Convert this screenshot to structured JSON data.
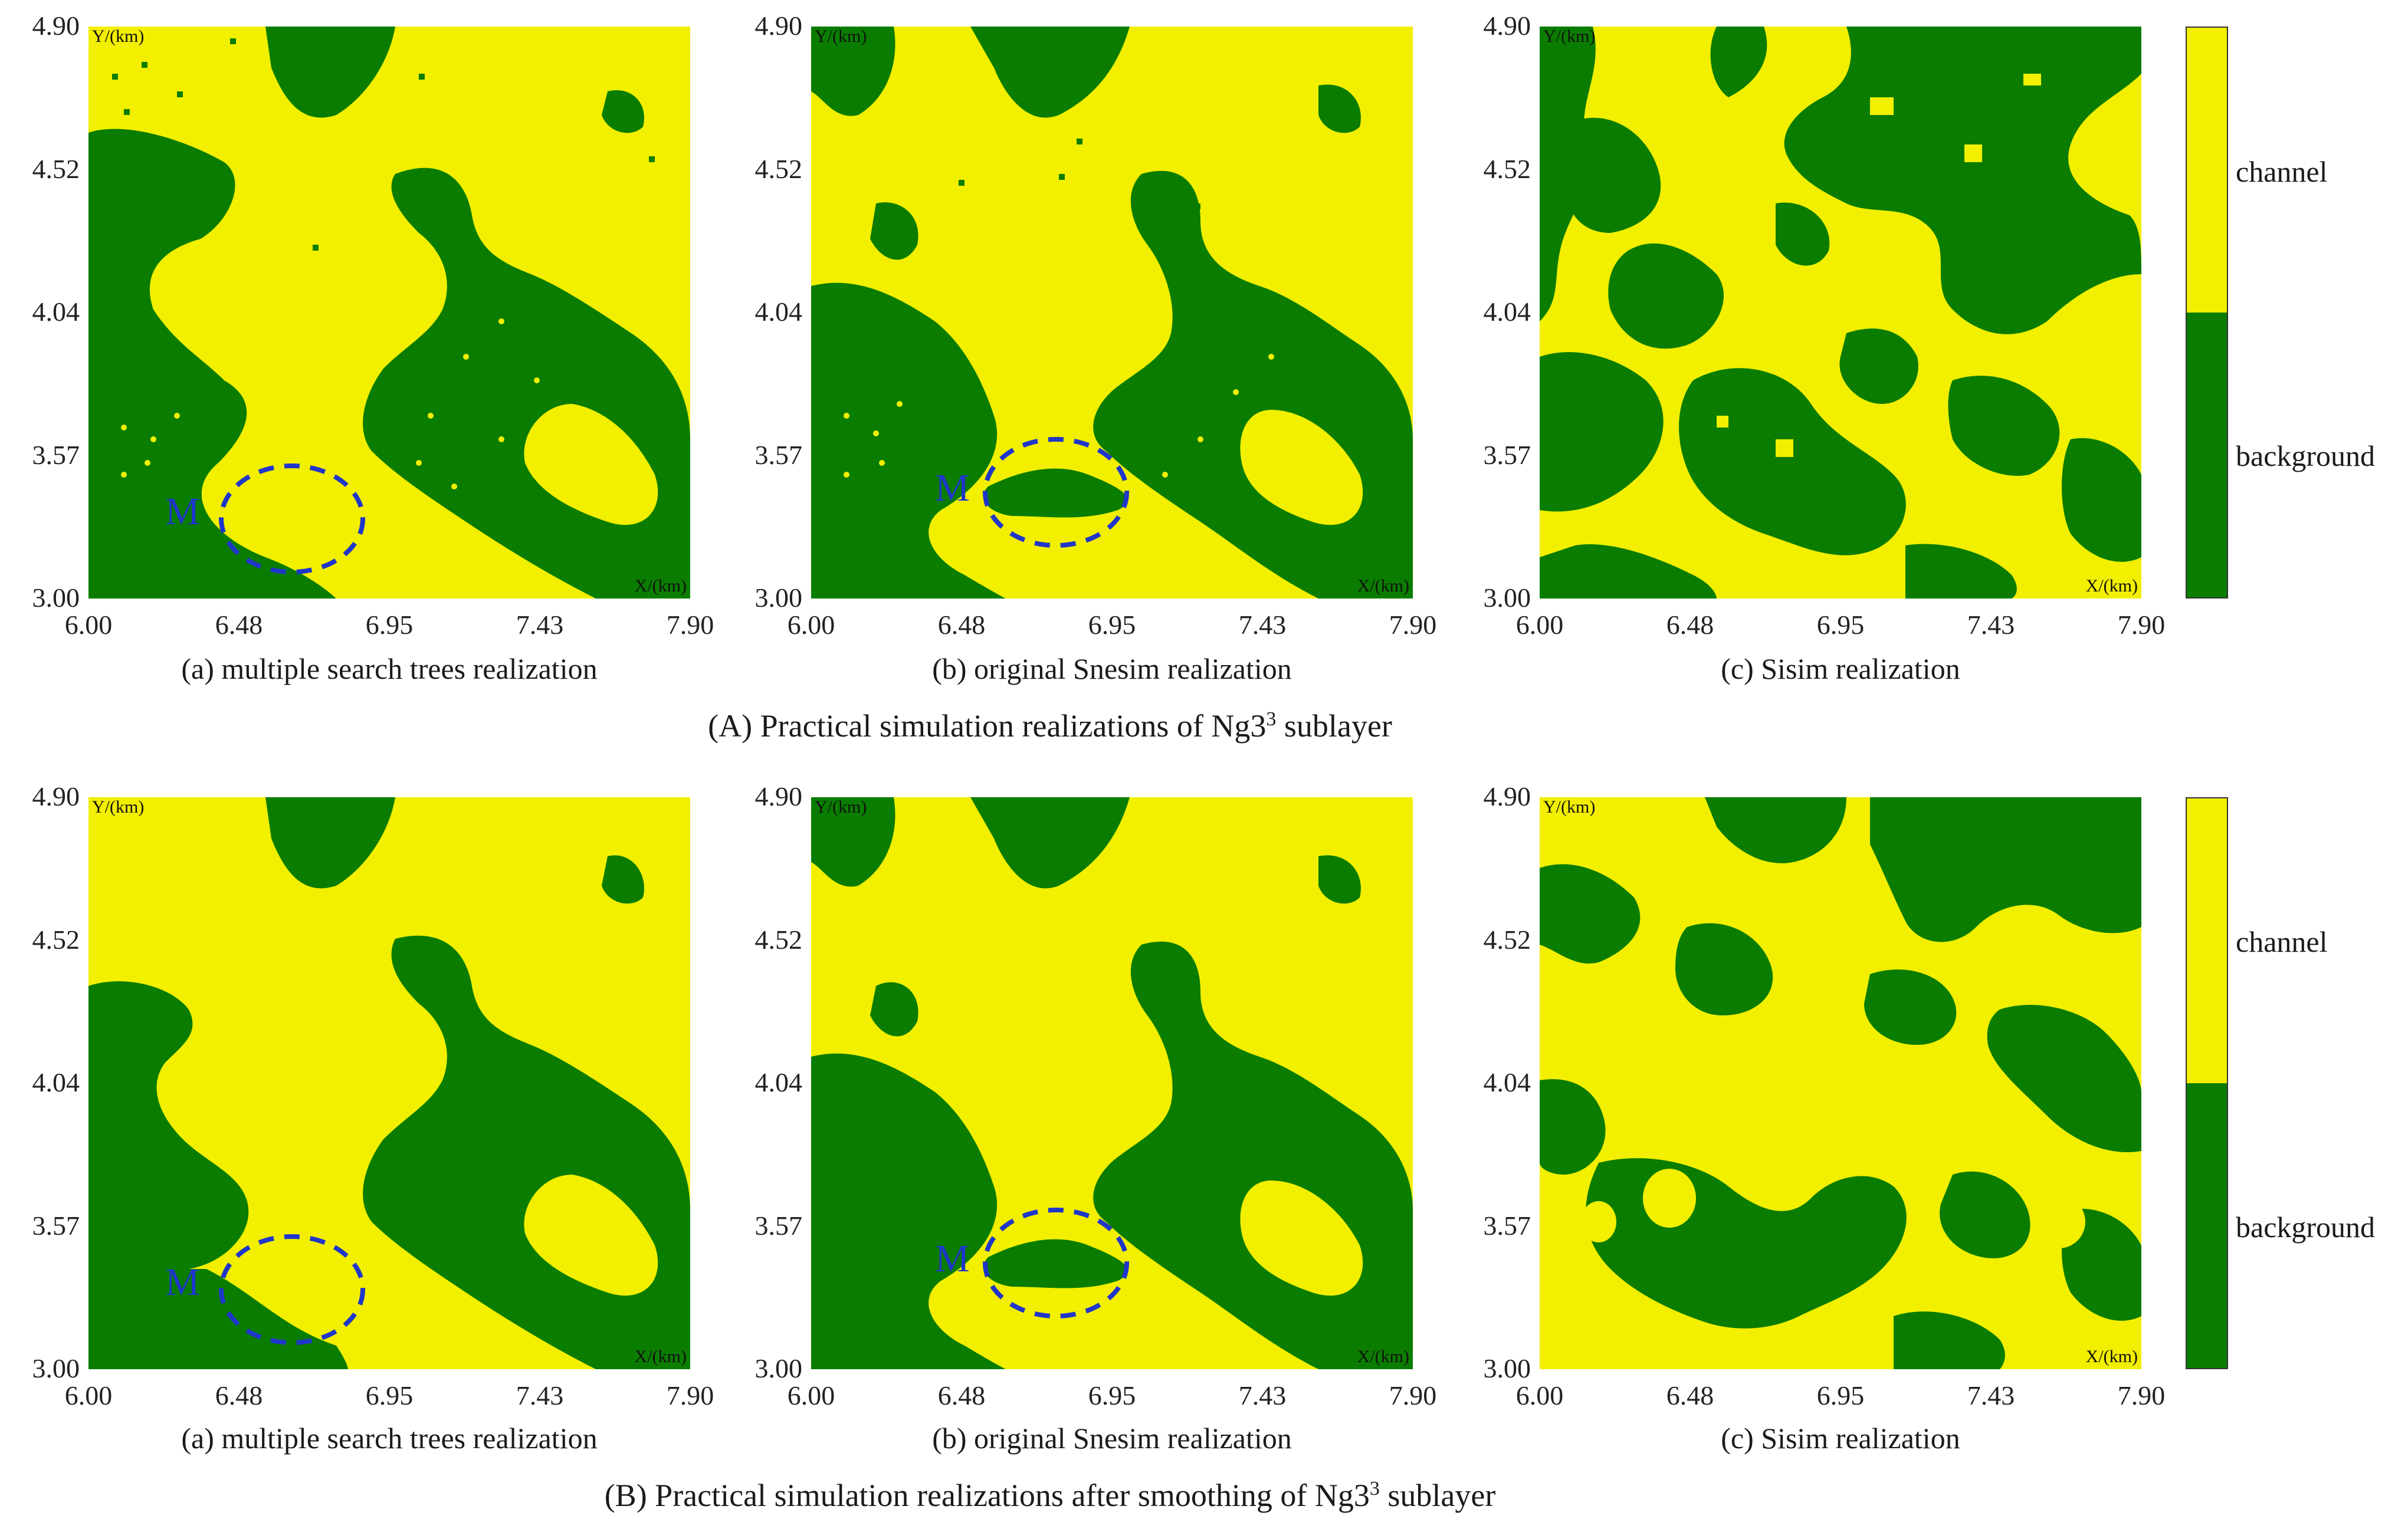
{
  "colors": {
    "channel": "#f2ef00",
    "background": "#0a7d00",
    "marker": "#1f36c9"
  },
  "axes": {
    "x_ticks": [
      "6.00",
      "6.48",
      "6.95",
      "7.43",
      "7.90"
    ],
    "y_ticks": [
      "4.90",
      "4.52",
      "4.04",
      "3.57",
      "3.00"
    ],
    "x_unit": "X/(km)",
    "y_unit": "Y/(km)"
  },
  "rows": [
    {
      "title_prefix": "(A) Practical simulation realizations of Ng3",
      "title_sup": "3",
      "title_suffix": " sublayer",
      "panels": [
        {
          "caption": "(a) multiple search trees realization",
          "marker": "M"
        },
        {
          "caption": "(b) original Snesim realization",
          "marker": "M"
        },
        {
          "caption": "(c) Sisim realization",
          "marker": ""
        }
      ]
    },
    {
      "title_prefix": "(B) Practical simulation realizations after smoothing of Ng3",
      "title_sup": "3",
      "title_suffix": " sublayer",
      "panels": [
        {
          "caption": "(a) multiple search trees realization",
          "marker": "M"
        },
        {
          "caption": "(b) original Snesim realization",
          "marker": "M"
        },
        {
          "caption": "(c) Sisim realization",
          "marker": ""
        }
      ]
    }
  ],
  "legend": {
    "channel_label": "channel",
    "background_label": "background"
  }
}
